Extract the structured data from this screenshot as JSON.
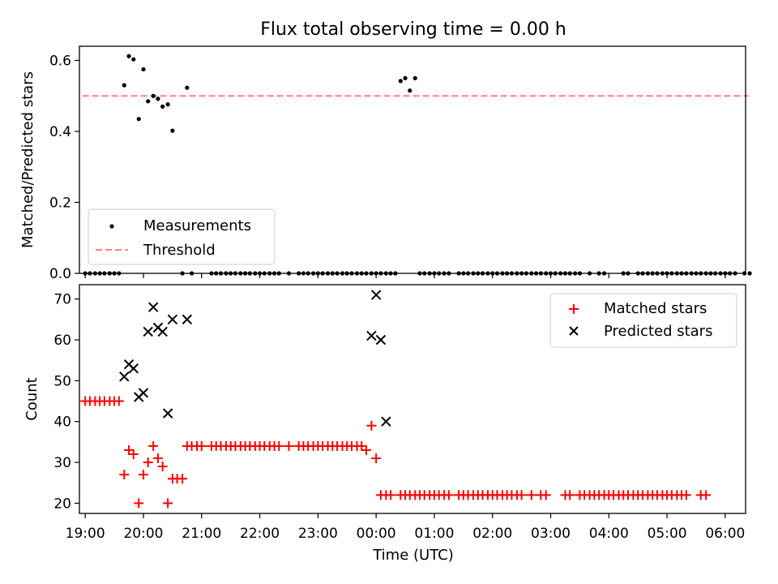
{
  "chart_data": [
    {
      "type": "scatter",
      "title": "Flux total observing time = 0.00 h",
      "ylabel": "Matched/Predicted stars",
      "xlabel": "",
      "xlim": [
        -0.1,
        11.35
      ],
      "ylim": [
        0.0,
        0.64
      ],
      "yticks": [
        0.0,
        0.2,
        0.4,
        0.6
      ],
      "ytick_labels": [
        "0.0",
        "0.2",
        "0.4",
        "0.6"
      ],
      "legend_position": "lower-left",
      "series": [
        {
          "name": "Measurements",
          "kind": "points",
          "color": "#000000",
          "x": [
            0.0,
            0.08,
            0.17,
            0.25,
            0.33,
            0.42,
            0.5,
            0.58,
            0.67,
            0.75,
            0.83,
            0.92,
            1.0,
            1.08,
            1.17,
            1.25,
            1.33,
            1.42,
            1.5,
            1.67,
            1.75,
            1.83,
            2.17,
            2.25,
            2.33,
            2.42,
            2.5,
            2.58,
            2.67,
            2.75,
            2.83,
            2.92,
            3.0,
            3.08,
            3.17,
            3.25,
            3.33,
            3.5,
            3.67,
            3.75,
            3.83,
            3.92,
            4.0,
            4.08,
            4.17,
            4.25,
            4.33,
            4.42,
            4.5,
            4.58,
            4.67,
            4.75,
            4.83,
            4.92,
            5.0,
            5.08,
            5.17,
            5.25,
            5.33,
            5.42,
            5.5,
            5.58,
            5.67,
            5.75,
            5.83,
            5.92,
            6.0,
            6.08,
            6.17,
            6.25,
            6.42,
            6.5,
            6.58,
            6.67,
            6.75,
            6.83,
            6.92,
            7.0,
            7.08,
            7.17,
            7.25,
            7.33,
            7.42,
            7.5,
            7.58,
            7.67,
            7.75,
            7.83,
            7.92,
            8.0,
            8.08,
            8.17,
            8.25,
            8.33,
            8.42,
            8.5,
            8.67,
            8.83,
            8.92,
            9.25,
            9.33,
            9.5,
            9.58,
            9.67,
            9.75,
            9.83,
            9.92,
            10.0,
            10.08,
            10.17,
            10.25,
            10.33,
            10.42,
            10.5,
            10.58,
            10.67,
            10.75,
            10.83,
            10.92,
            11.0,
            11.08,
            11.17,
            11.33,
            11.42
          ],
          "y": [
            0,
            0,
            0,
            0,
            0,
            0,
            0,
            0,
            0.53,
            0.612,
            0.603,
            0.435,
            0.575,
            0.485,
            0.5,
            0.492,
            0.47,
            0.476,
            0.402,
            0,
            0.523,
            0,
            0,
            0,
            0,
            0,
            0,
            0,
            0,
            0,
            0,
            0,
            0,
            0,
            0,
            0,
            0,
            0,
            0,
            0,
            0,
            0,
            0,
            0,
            0,
            0,
            0,
            0,
            0,
            0,
            0,
            0,
            0,
            0,
            0,
            0,
            0,
            0,
            0,
            0.542,
            0.55,
            0.515,
            0.55,
            0,
            0,
            0,
            0,
            0,
            0,
            0,
            0,
            0,
            0,
            0,
            0,
            0,
            0,
            0,
            0,
            0,
            0,
            0,
            0,
            0,
            0,
            0,
            0,
            0,
            0,
            0,
            0,
            0,
            0,
            0,
            0,
            0,
            0,
            0,
            0,
            0,
            0,
            0,
            0,
            0,
            0,
            0,
            0,
            0,
            0,
            0,
            0,
            0,
            0,
            0,
            0,
            0,
            0,
            0,
            0,
            0,
            0,
            0,
            0,
            0
          ]
        },
        {
          "name": "Threshold",
          "kind": "dashed-line",
          "color": "#ff8080",
          "x": [
            -0.05,
            11.4
          ],
          "y": [
            0.5,
            0.5
          ]
        }
      ]
    },
    {
      "type": "scatter",
      "title": "",
      "ylabel": "Count",
      "xlabel": "Time (UTC)",
      "xlim": [
        -0.1,
        11.35
      ],
      "ylim": [
        17.5,
        73.5
      ],
      "yticks": [
        20,
        30,
        40,
        50,
        60,
        70
      ],
      "ytick_labels": [
        "20",
        "30",
        "40",
        "50",
        "60",
        "70"
      ],
      "xticks": [
        0,
        1,
        2,
        3,
        4,
        5,
        6,
        7,
        8,
        9,
        10,
        11
      ],
      "xtick_labels": [
        "19:00",
        "20:00",
        "21:00",
        "22:00",
        "23:00",
        "00:00",
        "01:00",
        "02:00",
        "03:00",
        "04:00",
        "05:00",
        "06:00"
      ],
      "legend_position": "top-right",
      "series": [
        {
          "name": "Matched stars",
          "marker": "plus",
          "color": "#ff0000",
          "x": [
            0.0,
            0.08,
            0.17,
            0.25,
            0.33,
            0.42,
            0.5,
            0.58,
            0.67,
            0.75,
            0.83,
            0.92,
            1.0,
            1.08,
            1.17,
            1.25,
            1.33,
            1.42,
            1.5,
            1.58,
            1.67,
            1.75,
            1.83,
            1.92,
            2.0,
            2.17,
            2.25,
            2.33,
            2.42,
            2.5,
            2.58,
            2.67,
            2.75,
            2.83,
            2.92,
            3.0,
            3.08,
            3.17,
            3.25,
            3.33,
            3.5,
            3.67,
            3.75,
            3.83,
            3.92,
            4.0,
            4.08,
            4.17,
            4.25,
            4.33,
            4.42,
            4.5,
            4.58,
            4.67,
            4.75,
            4.83,
            4.92,
            5.0,
            5.08,
            5.17,
            5.25,
            5.42,
            5.5,
            5.58,
            5.67,
            5.75,
            5.83,
            5.92,
            6.0,
            6.08,
            6.17,
            6.25,
            6.42,
            6.5,
            6.58,
            6.67,
            6.75,
            6.83,
            6.92,
            7.0,
            7.08,
            7.17,
            7.25,
            7.33,
            7.42,
            7.5,
            7.67,
            7.83,
            7.92,
            8.25,
            8.33,
            8.5,
            8.58,
            8.67,
            8.75,
            8.83,
            8.92,
            9.0,
            9.08,
            9.17,
            9.25,
            9.33,
            9.42,
            9.5,
            9.58,
            9.67,
            9.75,
            9.83,
            9.92,
            10.0,
            10.08,
            10.17,
            10.25,
            10.33,
            10.58,
            10.67
          ],
          "y": [
            45,
            45,
            45,
            45,
            45,
            45,
            45,
            45,
            27,
            33,
            32,
            20,
            27,
            30,
            34,
            31,
            29,
            20,
            26,
            26,
            26,
            34,
            34,
            34,
            34,
            34,
            34,
            34,
            34,
            34,
            34,
            34,
            34,
            34,
            34,
            34,
            34,
            34,
            34,
            34,
            34,
            34,
            34,
            34,
            34,
            34,
            34,
            34,
            34,
            34,
            34,
            34,
            34,
            34,
            34,
            33,
            39,
            31,
            22,
            22,
            22,
            22,
            22,
            22,
            22,
            22,
            22,
            22,
            22,
            22,
            22,
            22,
            22,
            22,
            22,
            22,
            22,
            22,
            22,
            22,
            22,
            22,
            22,
            22,
            22,
            22,
            22,
            22,
            22,
            22,
            22,
            22,
            22,
            22,
            22,
            22,
            22,
            22,
            22,
            22,
            22,
            22,
            22,
            22,
            22,
            22,
            22,
            22,
            22,
            22,
            22,
            22,
            22,
            22,
            22,
            22
          ]
        },
        {
          "name": "Predicted stars",
          "marker": "x",
          "color": "#000000",
          "x": [
            0.67,
            0.75,
            0.83,
            0.92,
            1.0,
            1.08,
            1.17,
            1.25,
            1.33,
            1.42,
            1.5,
            1.75,
            4.92,
            5.0,
            5.08,
            5.17
          ],
          "y": [
            51,
            54,
            53,
            46,
            47,
            62,
            68,
            63,
            62,
            42,
            65,
            65,
            61,
            71,
            60,
            40
          ]
        }
      ]
    }
  ]
}
